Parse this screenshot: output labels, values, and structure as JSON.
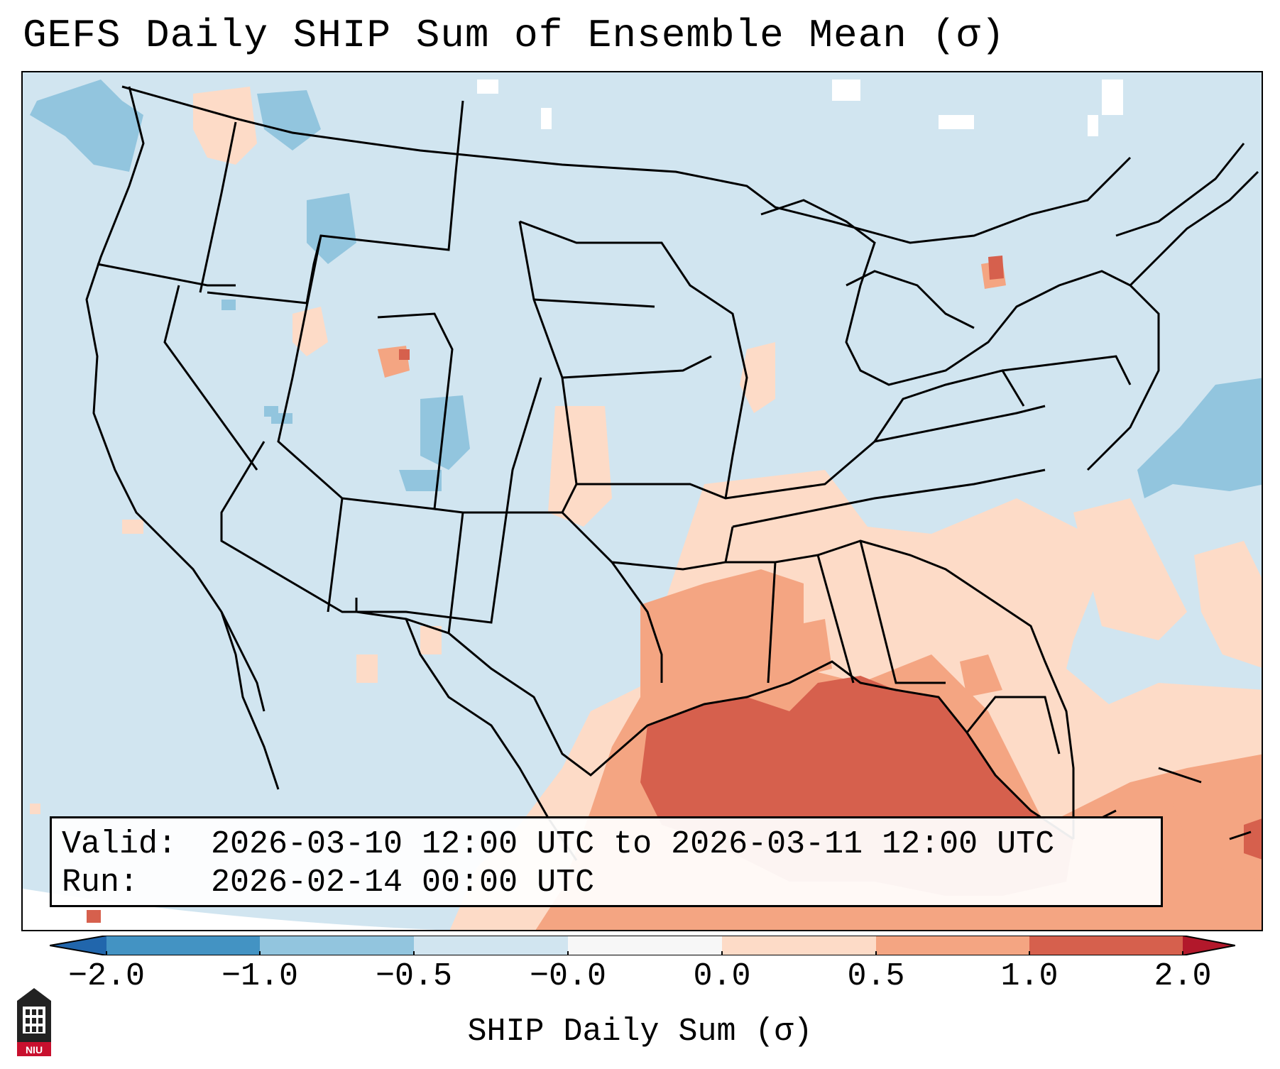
{
  "title": "GEFS Daily SHIP Sum of Ensemble Mean (σ)",
  "info": {
    "valid_label": "Valid:",
    "valid_value": "2026-03-10 12:00 UTC to 2026-03-11 12:00 UTC",
    "run_label": "Run:",
    "run_value": "2026-02-14 00:00 UTC"
  },
  "colorbar": {
    "label": "SHIP Daily Sum (σ)",
    "ticks": [
      "−2.0",
      "−1.0",
      "−0.5",
      "−0.0",
      "0.0",
      "0.5",
      "1.0",
      "2.0"
    ],
    "colors": {
      "below_min": "#2166ac",
      "bin_neg2_neg1": "#4393c3",
      "bin_neg1_neg05": "#92c5de",
      "bin_neg05_0": "#d1e5f0",
      "bin_0_0": "#f7f7f7",
      "bin_0_05": "#fddbc7",
      "bin_05_1": "#f4a582",
      "bin_1_2": "#d6604d",
      "above_max": "#b2182b"
    }
  },
  "logo_text": "NIU"
}
